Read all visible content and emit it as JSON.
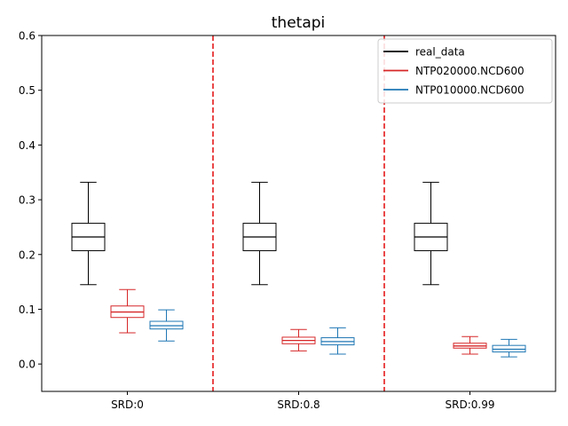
{
  "chart_data": {
    "type": "box",
    "title": "thetapi",
    "xlabel": "",
    "ylabel": "",
    "ylim": [
      -0.05,
      0.6
    ],
    "yticks": [
      0.0,
      0.1,
      0.2,
      0.3,
      0.4,
      0.5,
      0.6
    ],
    "ytick_labels": [
      "0.0",
      "0.1",
      "0.2",
      "0.3",
      "0.4",
      "0.5",
      "0.6"
    ],
    "categories": [
      "SRD:0",
      "SRD:0.8",
      "SRD:0.99"
    ],
    "separators": [
      "SRD:0|SRD:0.8",
      "SRD:0.8|SRD:0.99"
    ],
    "separator_color": "#e41a1c",
    "legend_placement": "top-right",
    "series": [
      {
        "name": "real_data",
        "color": "#000000",
        "boxes": [
          {
            "whislo": 0.145,
            "q1": 0.207,
            "med": 0.232,
            "q3": 0.257,
            "whishi": 0.332
          },
          {
            "whislo": 0.145,
            "q1": 0.207,
            "med": 0.232,
            "q3": 0.257,
            "whishi": 0.332
          },
          {
            "whislo": 0.145,
            "q1": 0.207,
            "med": 0.232,
            "q3": 0.257,
            "whishi": 0.332
          }
        ]
      },
      {
        "name": "NTP020000.NCD600",
        "color": "#d62728",
        "boxes": [
          {
            "whislo": 0.057,
            "q1": 0.085,
            "med": 0.095,
            "q3": 0.106,
            "whishi": 0.136
          },
          {
            "whislo": 0.024,
            "q1": 0.037,
            "med": 0.043,
            "q3": 0.049,
            "whishi": 0.063
          },
          {
            "whislo": 0.018,
            "q1": 0.029,
            "med": 0.033,
            "q3": 0.038,
            "whishi": 0.05
          }
        ]
      },
      {
        "name": "NTP010000.NCD600",
        "color": "#1f77b4",
        "boxes": [
          {
            "whislo": 0.042,
            "q1": 0.064,
            "med": 0.07,
            "q3": 0.078,
            "whishi": 0.099
          },
          {
            "whislo": 0.018,
            "q1": 0.035,
            "med": 0.041,
            "q3": 0.048,
            "whishi": 0.066
          },
          {
            "whislo": 0.013,
            "q1": 0.022,
            "med": 0.027,
            "q3": 0.034,
            "whishi": 0.045
          }
        ]
      }
    ]
  }
}
